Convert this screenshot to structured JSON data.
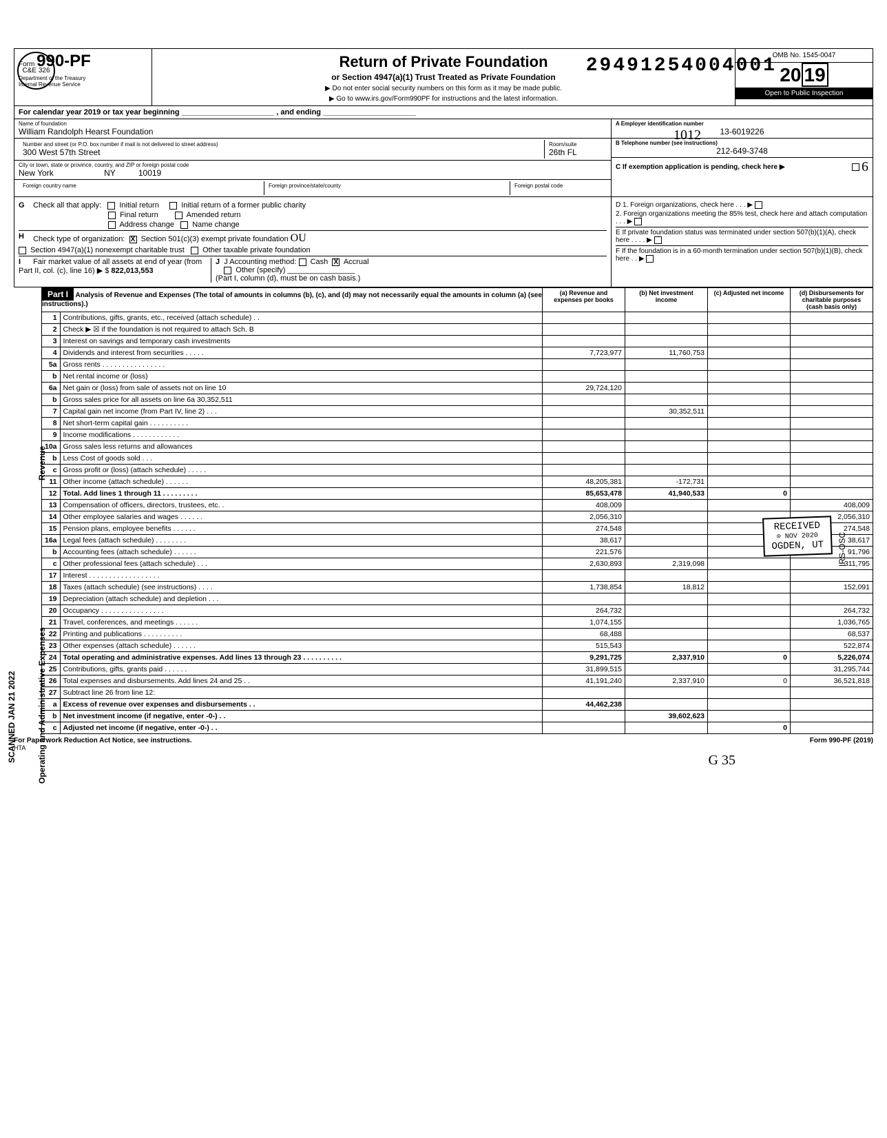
{
  "dln": "29491254004001",
  "form": {
    "prefix": "Form",
    "number": "990-PF",
    "dept": "Department of the Treasury\nInternal Revenue Service",
    "title": "Return of Private Foundation",
    "subtitle": "or Section 4947(a)(1) Trust Treated as Private Foundation",
    "inst1": "▶ Do not enter social security numbers on this form as it may be made public.",
    "inst2": "▶ Go to www.irs.gov/Form990PF for instructions and the latest information.",
    "omb": "OMB No. 1545-0047",
    "year_prefix": "20",
    "year_suffix": "19",
    "inspect": "Open to Public Inspection"
  },
  "cal_year": "For calendar year 2019 or tax year beginning ______________________ , and ending ______________________",
  "foundation": {
    "name_label": "Name of foundation",
    "name": "William Randolph Hearst Foundation",
    "addr_label": "Number and street (or P.O. box number if mail is not delivered to street address)",
    "addr": "300 West 57th Street",
    "room_label": "Room/suite",
    "room": "26th FL",
    "city_label": "City or town, state or province, country, and ZIP or foreign postal code",
    "city": "New York",
    "state": "NY",
    "zip": "10019",
    "foreign_country_label": "Foreign country name",
    "foreign_prov_label": "Foreign province/state/county",
    "foreign_postal_label": "Foreign postal code"
  },
  "right_info": {
    "a_label": "A Employer identification number",
    "a_val": "13-6019226",
    "b_label": "B Telephone number (see instructions)",
    "b_val": "212-649-3748",
    "c_label": "C If exemption application is pending, check here ▶"
  },
  "section_g": {
    "g_label": "G Check all that apply:",
    "initial_return": "Initial return",
    "initial_former": "Initial return of a former public charity",
    "final_return": "Final return",
    "amended": "Amended return",
    "addr_change": "Address change",
    "name_change": "Name change",
    "h_label": "H Check type of organization:",
    "h_501c3": "Section 501(c)(3) exempt private foundation",
    "h_4947": "Section 4947(a)(1) nonexempt charitable trust",
    "h_other": "Other taxable private foundation",
    "i_label": "I",
    "i_text": "Fair market value of all assets at end of year (from Part II, col. (c), line 16) ▶ $",
    "i_val": "822,013,553",
    "j_label": "J Accounting method:",
    "j_cash": "Cash",
    "j_accrual": "Accrual",
    "j_other": "Other (specify)",
    "j_note": "(Part I, column (d), must be on cash basis.)",
    "d1": "D 1. Foreign organizations, check here . . . ▶",
    "d2": "2. Foreign organizations meeting the 85% test, check here and attach computation . . . ▶",
    "e": "E If private foundation status was terminated under section 507(b)(1)(A), check here . . . . ▶",
    "f": "F If the foundation is in a 60-month termination under section 507(b)(1)(B), check here . . ▶"
  },
  "part1": {
    "header": "Part I",
    "title": "Analysis of Revenue and Expenses (The total of amounts in columns (b), (c), and (d) may not necessarily equal the amounts in column (a) (see instructions).)",
    "col_a": "(a) Revenue and expenses per books",
    "col_b": "(b) Net investment income",
    "col_c": "(c) Adjusted net income",
    "col_d": "(d) Disbursements for charitable purposes (cash basis only)",
    "side_rev": "Revenue",
    "side_exp": "Operating and Administrative Expenses",
    "side_scan": "SCANNED JAN 21 2022",
    "rows": [
      {
        "ln": "1",
        "desc": "Contributions, gifts, grants, etc., received (attach schedule) . .",
        "a": "",
        "b": "",
        "c": "",
        "d": ""
      },
      {
        "ln": "2",
        "desc": "Check ▶ ☒ if the foundation is not required to attach Sch. B",
        "a": "",
        "b": "",
        "c": "",
        "d": ""
      },
      {
        "ln": "3",
        "desc": "Interest on savings and temporary cash investments",
        "a": "",
        "b": "",
        "c": "",
        "d": ""
      },
      {
        "ln": "4",
        "desc": "Dividends and interest from securities . . . . .",
        "a": "7,723,977",
        "b": "11,760,753",
        "c": "",
        "d": ""
      },
      {
        "ln": "5a",
        "desc": "Gross rents . . . . . . . . . . . . . . . .",
        "a": "",
        "b": "",
        "c": "",
        "d": ""
      },
      {
        "ln": "b",
        "desc": "Net rental income or (loss)",
        "a": "",
        "b": "",
        "c": "",
        "d": ""
      },
      {
        "ln": "6a",
        "desc": "Net gain or (loss) from sale of assets not on line 10",
        "a": "29,724,120",
        "b": "",
        "c": "",
        "d": ""
      },
      {
        "ln": "b",
        "desc": "Gross sales price for all assets on line 6a          30,352,511",
        "a": "",
        "b": "",
        "c": "",
        "d": ""
      },
      {
        "ln": "7",
        "desc": "Capital gain net income (from Part IV, line 2) . . .",
        "a": "",
        "b": "30,352,511",
        "c": "",
        "d": ""
      },
      {
        "ln": "8",
        "desc": "Net short-term capital gain . . . . . . . . . .",
        "a": "",
        "b": "",
        "c": "",
        "d": ""
      },
      {
        "ln": "9",
        "desc": "Income modifications . . . . . . . . . . . .",
        "a": "",
        "b": "",
        "c": "",
        "d": ""
      },
      {
        "ln": "10a",
        "desc": "Gross sales less returns and allowances",
        "a": "",
        "b": "",
        "c": "",
        "d": ""
      },
      {
        "ln": "b",
        "desc": "Less Cost of goods sold . . .",
        "a": "",
        "b": "",
        "c": "",
        "d": ""
      },
      {
        "ln": "c",
        "desc": "Gross profit or (loss) (attach schedule) . . . . .",
        "a": "",
        "b": "",
        "c": "",
        "d": ""
      },
      {
        "ln": "11",
        "desc": "Other income (attach schedule) . . . . . .",
        "a": "48,205,381",
        "b": "-172,731",
        "c": "",
        "d": ""
      },
      {
        "ln": "12",
        "desc": "Total. Add lines 1 through 11 . . . . . . . . .",
        "a": "85,653,478",
        "b": "41,940,533",
        "c": "0",
        "d": "",
        "bold": true
      },
      {
        "ln": "13",
        "desc": "Compensation of officers, directors, trustees, etc. .",
        "a": "408,009",
        "b": "",
        "c": "",
        "d": "408,009"
      },
      {
        "ln": "14",
        "desc": "Other employee salaries and wages . . . . . .",
        "a": "2,056,310",
        "b": "",
        "c": "",
        "d": "2,056,310"
      },
      {
        "ln": "15",
        "desc": "Pension plans, employee benefits . . . . . .",
        "a": "274,548",
        "b": "",
        "c": "",
        "d": "274,548"
      },
      {
        "ln": "16a",
        "desc": "Legal fees (attach schedule) . . . . . . . .",
        "a": "38,617",
        "b": "",
        "c": "",
        "d": "38,617"
      },
      {
        "ln": "b",
        "desc": "Accounting fees (attach schedule) . . . . . .",
        "a": "221,576",
        "b": "",
        "c": "",
        "d": "91,796"
      },
      {
        "ln": "c",
        "desc": "Other professional fees (attach schedule) . . .",
        "a": "2,630,893",
        "b": "2,319,098",
        "c": "",
        "d": "311,795"
      },
      {
        "ln": "17",
        "desc": "Interest . . . . . . . . . . . . . . . . . .",
        "a": "",
        "b": "",
        "c": "",
        "d": ""
      },
      {
        "ln": "18",
        "desc": "Taxes (attach schedule) (see instructions) . . . .",
        "a": "1,738,854",
        "b": "18,812",
        "c": "",
        "d": "152,091"
      },
      {
        "ln": "19",
        "desc": "Depreciation (attach schedule) and depletion . . .",
        "a": "",
        "b": "",
        "c": "",
        "d": ""
      },
      {
        "ln": "20",
        "desc": "Occupancy . . . . . . . . . . . . . . . .",
        "a": "264,732",
        "b": "",
        "c": "",
        "d": "264,732"
      },
      {
        "ln": "21",
        "desc": "Travel, conferences, and meetings . . . . . .",
        "a": "1,074,155",
        "b": "",
        "c": "",
        "d": "1,036,765"
      },
      {
        "ln": "22",
        "desc": "Printing and publications . . . . . . . . . .",
        "a": "68,488",
        "b": "",
        "c": "",
        "d": "68,537"
      },
      {
        "ln": "23",
        "desc": "Other expenses (attach schedule) . . . . . .",
        "a": "515,543",
        "b": "",
        "c": "",
        "d": "522,874"
      },
      {
        "ln": "24",
        "desc": "Total operating and administrative expenses. Add lines 13 through 23 . . . . . . . . . .",
        "a": "9,291,725",
        "b": "2,337,910",
        "c": "0",
        "d": "5,226,074",
        "bold": true
      },
      {
        "ln": "25",
        "desc": "Contributions, gifts, grants paid . . . . . .",
        "a": "31,899,515",
        "b": "",
        "c": "",
        "d": "31,295,744"
      },
      {
        "ln": "26",
        "desc": "Total expenses and disbursements. Add lines 24 and 25 . .",
        "a": "41,191,240",
        "b": "2,337,910",
        "c": "0",
        "d": "36,521,818"
      },
      {
        "ln": "27",
        "desc": "Subtract line 26 from line 12:",
        "a": "",
        "b": "",
        "c": "",
        "d": ""
      },
      {
        "ln": "a",
        "desc": "Excess of revenue over expenses and disbursements . .",
        "a": "44,462,238",
        "b": "",
        "c": "",
        "d": "",
        "bold": true
      },
      {
        "ln": "b",
        "desc": "Net investment income (if negative, enter -0-) . .",
        "a": "",
        "b": "39,602,623",
        "c": "",
        "d": "",
        "bold": true
      },
      {
        "ln": "c",
        "desc": "Adjusted net income (if negative, enter -0-) . .",
        "a": "",
        "b": "",
        "c": "0",
        "d": "",
        "bold": true
      }
    ]
  },
  "footer": {
    "left": "For Paperwork Reduction Act Notice, see instructions.",
    "mid": "HTA",
    "right": "Form 990-PF (2019)"
  },
  "stamps": {
    "received": "RECEIVED",
    "nov": "NOV  2020",
    "ogden": "OGDEN, UT",
    "irs_osc": "IRS-OSC",
    "hand_1012": "1012",
    "hand_g35": "G 35",
    "hand_6": "6",
    "hand_ou": "OU"
  }
}
